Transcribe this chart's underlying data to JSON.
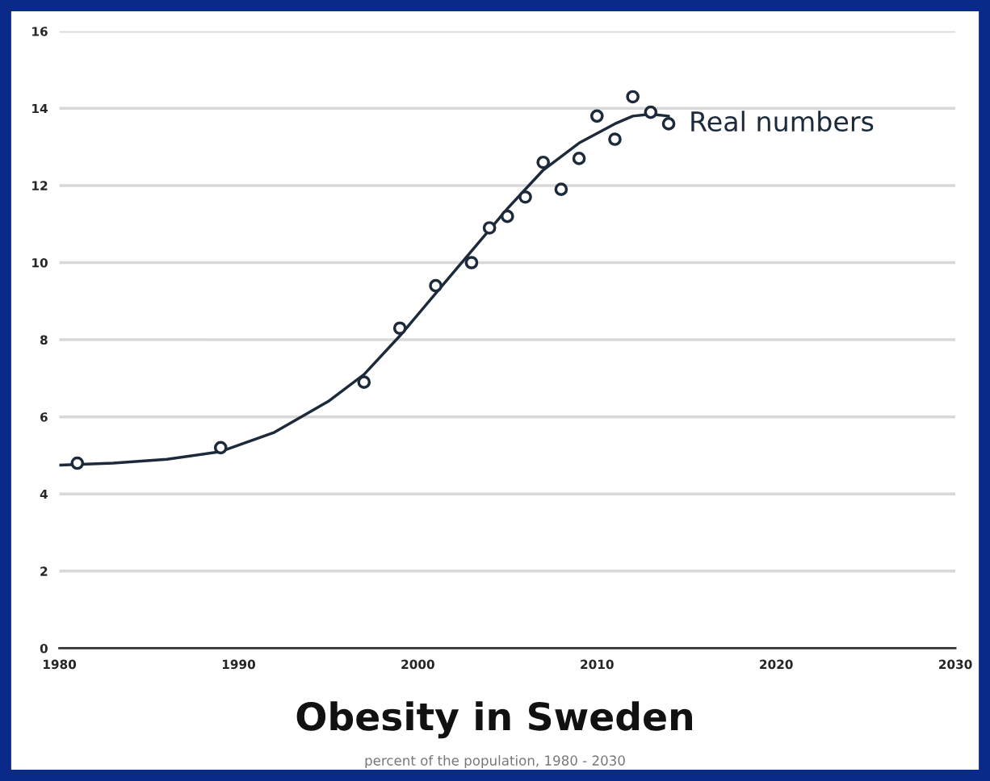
{
  "chart_data": {
    "type": "scatter",
    "title": "Obesity in Sweden",
    "subtitle": "percent of the population, 1980 - 2030",
    "xlim": [
      1980,
      2030
    ],
    "xticks": [
      1980,
      1990,
      2000,
      2010,
      2020,
      2030
    ],
    "ylim": [
      0,
      16
    ],
    "yticks": [
      0,
      2,
      4,
      6,
      8,
      10,
      12,
      14,
      16
    ],
    "grid": "y",
    "annotations": [
      {
        "text": "Real numbers",
        "x": 2014,
        "y": 13.6
      }
    ],
    "series": [
      {
        "marker": "circle",
        "color": "#1c2a3a",
        "x": [
          1981,
          1989,
          1997,
          1999,
          2001,
          2003,
          2004,
          2005,
          2006,
          2007,
          2008,
          2009,
          2010,
          2011,
          2012,
          2013,
          2014
        ],
        "values": [
          4.8,
          5.2,
          6.9,
          8.3,
          9.4,
          10.0,
          10.9,
          11.2,
          11.7,
          12.6,
          11.9,
          12.7,
          13.8,
          13.2,
          14.3,
          13.9,
          13.6
        ]
      },
      {
        "type": "line",
        "marker": "none",
        "color": "#1c2a3a",
        "x": [
          1980,
          1983,
          1986,
          1989,
          1992,
          1995,
          1997,
          1999,
          2001,
          2003,
          2005,
          2007,
          2009,
          2011,
          2012,
          2013,
          2014
        ],
        "values": [
          4.75,
          4.8,
          4.9,
          5.1,
          5.6,
          6.4,
          7.1,
          8.1,
          9.2,
          10.3,
          11.4,
          12.4,
          13.1,
          13.6,
          13.8,
          13.85,
          13.8
        ]
      }
    ]
  }
}
